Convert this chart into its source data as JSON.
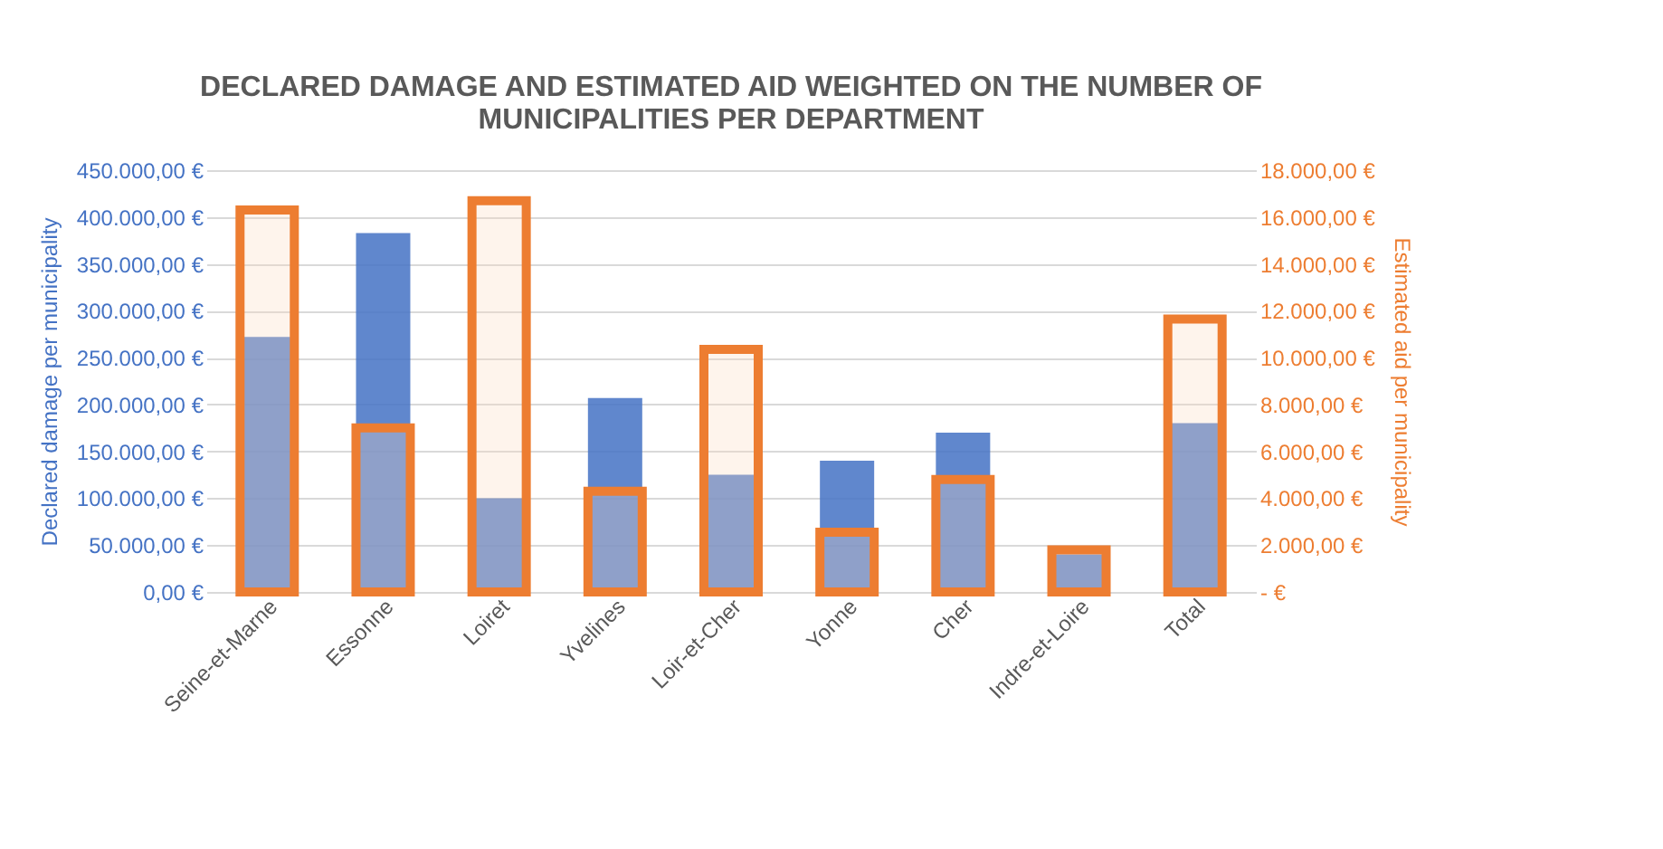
{
  "chart_data": {
    "type": "bar",
    "title": "DECLARED DAMAGE AND ESTIMATED AID WEIGHTED ON THE NUMBER OF MUNICIPALITIES PER DEPARTMENT",
    "ylabel": "Declared damage per municipality",
    "y2label": "Estimated aid per municipality",
    "categories": [
      "Seine-et-Marne",
      "Essonne",
      "Loiret",
      "Yvelines",
      "Loir-et-Cher",
      "Yonne",
      "Cher",
      "Indre-et-Loire",
      "Total"
    ],
    "series": [
      {
        "color": "#4472c4",
        "values": [
          272000,
          383000,
          100000,
          207000,
          125000,
          140000,
          170000,
          40000,
          180000
        ]
      },
      {
        "color": "#ed7d31",
        "axis": "y2",
        "values": [
          16300,
          7000,
          16700,
          4300,
          10350,
          2550,
          4800,
          1800,
          11650
        ]
      }
    ],
    "ylim": [
      0,
      450000
    ],
    "yticks": [
      {
        "value": 0,
        "label": "0,00 €"
      },
      {
        "value": 50000,
        "label": "50.000,00 €"
      },
      {
        "value": 100000,
        "label": "100.000,00 €"
      },
      {
        "value": 150000,
        "label": "150.000,00 €"
      },
      {
        "value": 200000,
        "label": "200.000,00 €"
      },
      {
        "value": 250000,
        "label": "250.000,00 €"
      },
      {
        "value": 300000,
        "label": "300.000,00 €"
      },
      {
        "value": 350000,
        "label": "350.000,00 €"
      },
      {
        "value": 400000,
        "label": "400.000,00 €"
      },
      {
        "value": 450000,
        "label": "450.000,00 €"
      }
    ],
    "y2lim": [
      0,
      18000
    ],
    "y2ticks": [
      {
        "value": 0,
        "label": "-   €"
      },
      {
        "value": 2000,
        "label": "2.000,00 €"
      },
      {
        "value": 4000,
        "label": "4.000,00 €"
      },
      {
        "value": 6000,
        "label": "6.000,00 €"
      },
      {
        "value": 8000,
        "label": "8.000,00 €"
      },
      {
        "value": 10000,
        "label": "10.000,00 €"
      },
      {
        "value": 12000,
        "label": "12.000,00 €"
      },
      {
        "value": 14000,
        "label": "14.000,00 €"
      },
      {
        "value": 16000,
        "label": "16.000,00 €"
      },
      {
        "value": 18000,
        "label": "18.000,00 €"
      }
    ],
    "grid": "y"
  }
}
